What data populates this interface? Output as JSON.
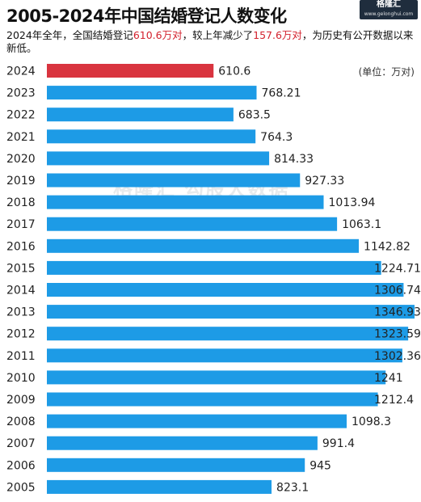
{
  "title": "2005-2024年中国结婚登记人数变化",
  "logo": {
    "brand": "格隆汇",
    "url": "www.gelonghui.com"
  },
  "subtitle": {
    "part1": "2024年全年，全国结婚登记",
    "hl1": "610.6万对",
    "part2": "，较上年减少了",
    "hl2": "157.6万对",
    "part3": "，为历史有公开数据以来新低。"
  },
  "unit_label": "(单位：万对)",
  "watermark": "格隆汇  勾股大数据",
  "colors": {
    "highlight": "#d9343f",
    "bar": "#1d9be6",
    "label": "#222222"
  },
  "chart_data": {
    "type": "bar",
    "orientation": "horizontal",
    "categories": [
      "2024",
      "2023",
      "2022",
      "2021",
      "2020",
      "2019",
      "2018",
      "2017",
      "2016",
      "2015",
      "2014",
      "2013",
      "2012",
      "2011",
      "2010",
      "2009",
      "2008",
      "2007",
      "2006",
      "2005"
    ],
    "values": [
      610.6,
      768.21,
      683.5,
      764.3,
      814.33,
      927.33,
      1013.94,
      1063.1,
      1142.82,
      1224.71,
      1306.74,
      1346.93,
      1323.59,
      1302.36,
      1241,
      1212.4,
      1098.3,
      991.4,
      945,
      823.1
    ],
    "value_labels": [
      "610.6",
      "768.21",
      "683.5",
      "764.3",
      "814.33",
      "927.33",
      "1013.94",
      "1063.1",
      "1142.82",
      "1224.71",
      "1306.74",
      "1346.93",
      "1323.59",
      "1302.36",
      "1241",
      "1212.4",
      "1098.3",
      "991.4",
      "945",
      "823.1"
    ],
    "highlight_index": 0,
    "xlim": [
      0,
      1346.93
    ],
    "grid": false,
    "xlabel": "",
    "ylabel": ""
  }
}
